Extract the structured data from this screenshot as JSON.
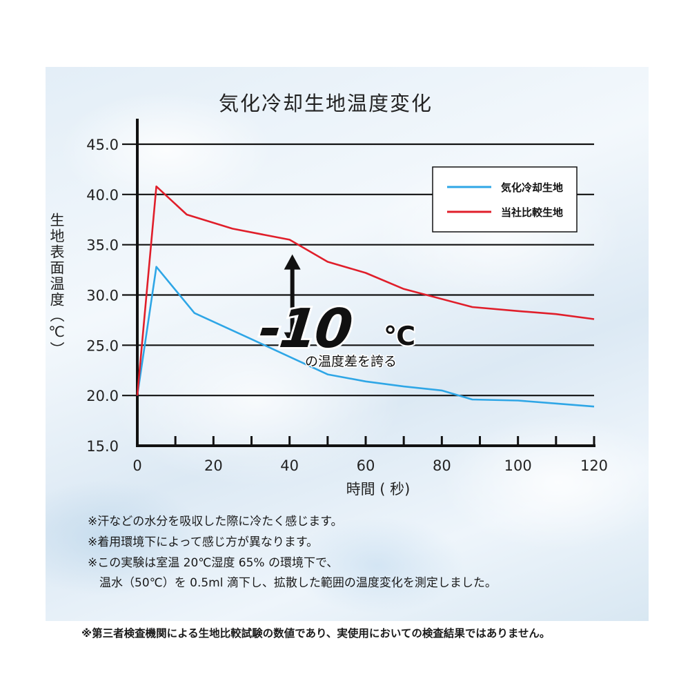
{
  "chart_data": {
    "type": "line",
    "title": "気化冷却生地温度変化",
    "xlabel": "時間 ( 秒)",
    "ylabel": "生地表面温度（℃）",
    "xlim": [
      0,
      120
    ],
    "ylim": [
      15,
      45
    ],
    "x_ticks": [
      "0",
      "20",
      "40",
      "60",
      "80",
      "100",
      "120"
    ],
    "y_ticks": [
      "15.0",
      "20.0",
      "25.0",
      "30.0",
      "35.0",
      "40.0",
      "45.0"
    ],
    "grid": "horizontal",
    "legend_position": "top-right",
    "series": [
      {
        "name": "気化冷却生地",
        "color": "#2ea6e6",
        "x": [
          0,
          5,
          15,
          30,
          50,
          60,
          70,
          80,
          88,
          100,
          110,
          120
        ],
        "y": [
          20.0,
          32.8,
          28.2,
          25.6,
          22.1,
          21.4,
          20.9,
          20.5,
          19.6,
          19.5,
          19.2,
          18.9
        ]
      },
      {
        "name": "当社比較生地",
        "color": "#e01e2a",
        "x": [
          0,
          5,
          13,
          25,
          40,
          50,
          60,
          70,
          88,
          100,
          110,
          120
        ],
        "y": [
          20.0,
          40.8,
          38.0,
          36.6,
          35.5,
          33.3,
          32.2,
          30.6,
          28.8,
          28.4,
          28.1,
          27.6
        ]
      }
    ],
    "annotation": {
      "value": "-10",
      "unit": "℃",
      "caption": "の温度差を誇る",
      "arrow_from_y": 35.0,
      "arrow_to_y": 24.5,
      "arrow_x": 40
    }
  },
  "notes": [
    "※汗などの水分を吸収した際に冷たく感じます。",
    "※着用環境下によって感じ方が異なります。",
    "※この実験は室温 20℃湿度 65% の環境下で、",
    "　温水（50℃）を 0.5ml 滴下し、拡散した範囲の温度変化を測定しました。"
  ],
  "bottom_note": "※第三者検査機関による生地比較試験の数値であり、実使用においての検査結果ではありません。"
}
